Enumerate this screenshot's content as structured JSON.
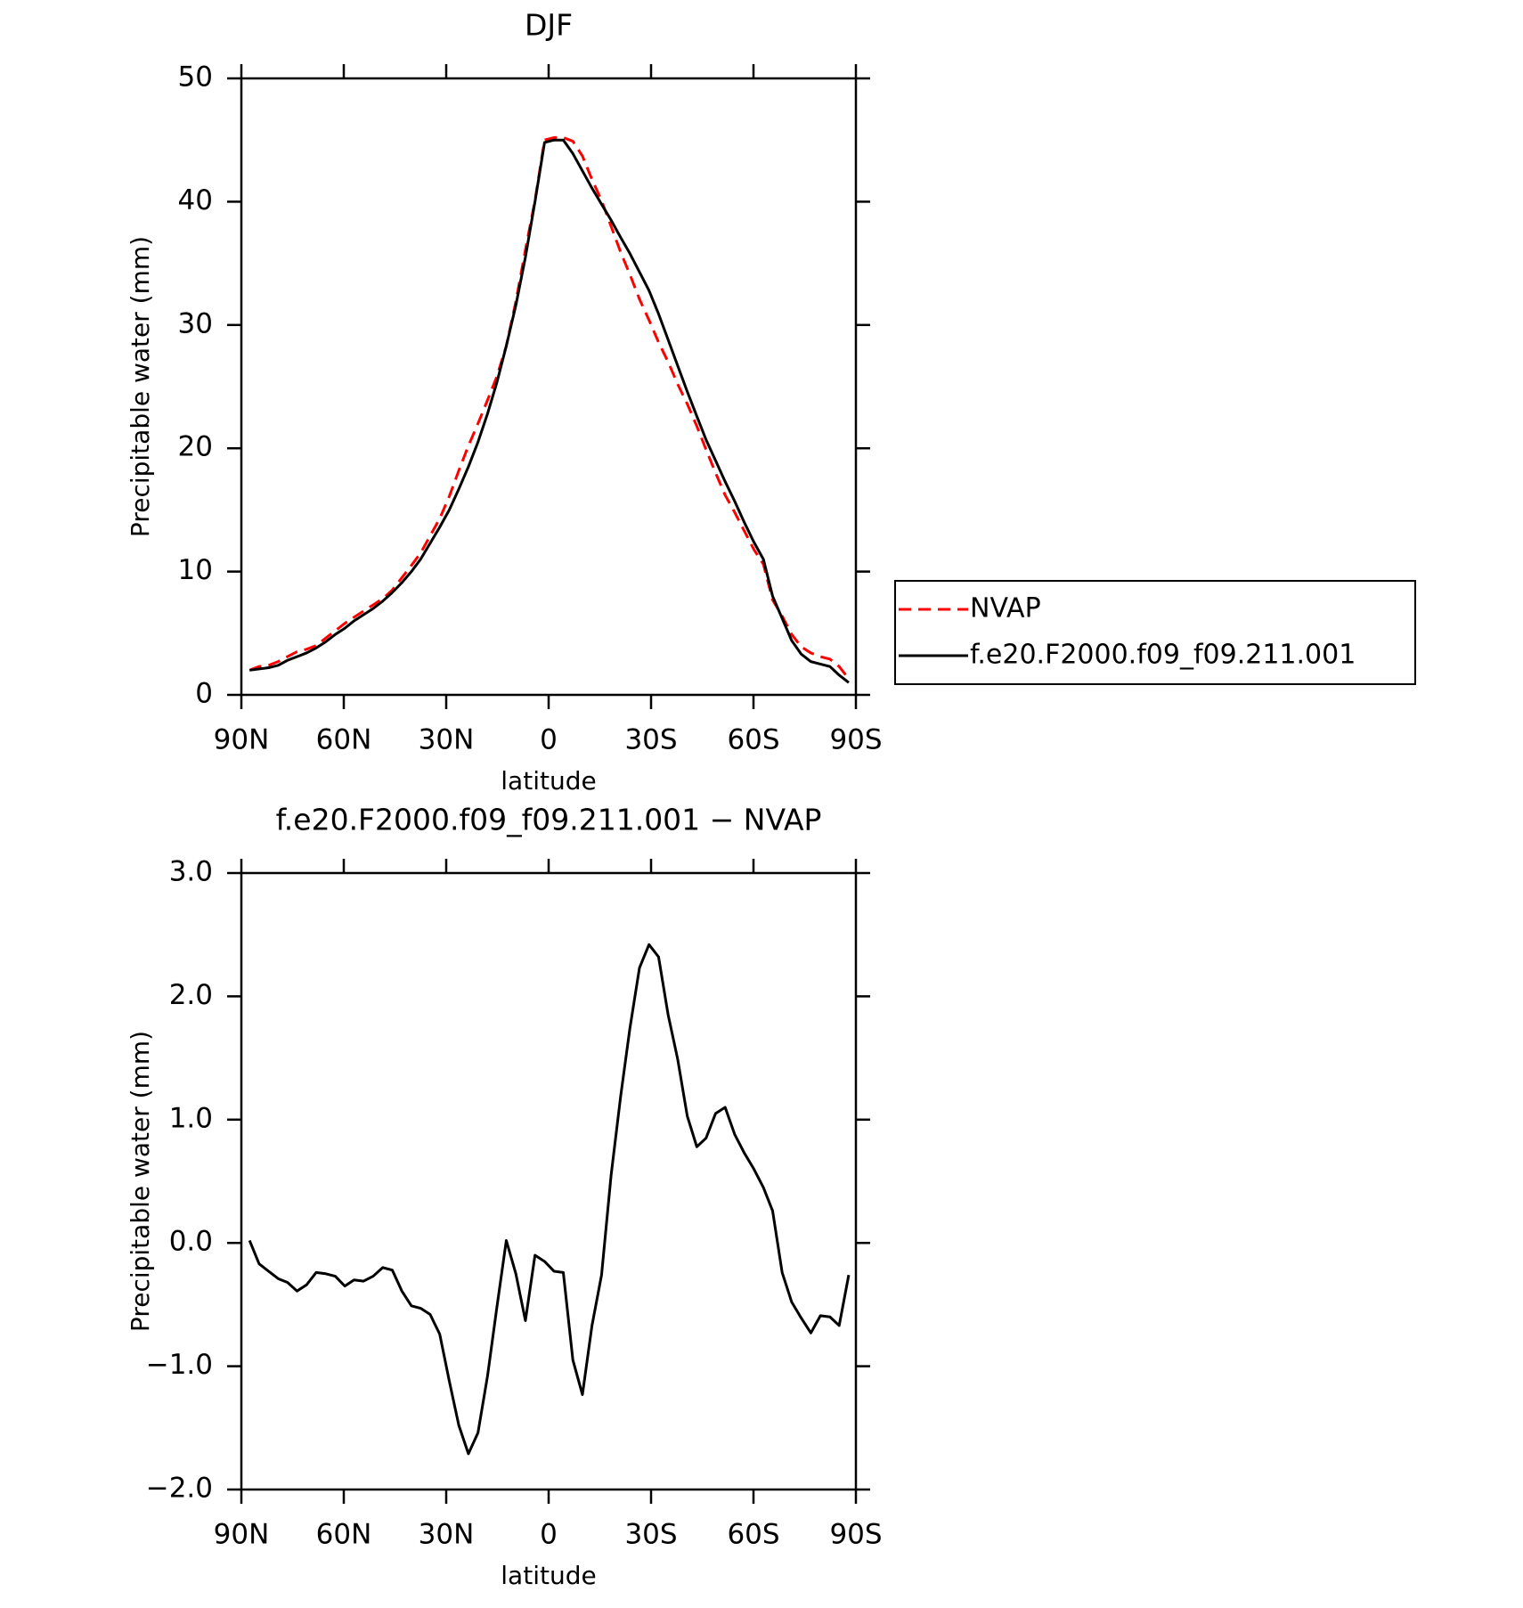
{
  "chart_data": [
    {
      "type": "line",
      "title": "DJF",
      "xlabel": "latitude",
      "ylabel": "Precipitable water (mm)",
      "xlim": [
        90,
        -90
      ],
      "ylim": [
        0,
        50
      ],
      "xticks": [
        {
          "value": 90,
          "label": "90N"
        },
        {
          "value": 60,
          "label": "60N"
        },
        {
          "value": 30,
          "label": "30N"
        },
        0,
        {
          "value": -30,
          "label": "30S"
        },
        {
          "value": -60,
          "label": "60S"
        },
        {
          "value": -90,
          "label": "90S"
        }
      ],
      "yticks": [
        0,
        10,
        20,
        30,
        40,
        50
      ],
      "legend": "right",
      "x": [
        87.6,
        84.8,
        82.0,
        79.2,
        76.5,
        73.7,
        70.9,
        68.1,
        65.3,
        62.5,
        59.7,
        57.0,
        54.2,
        51.4,
        48.6,
        45.8,
        43.0,
        40.2,
        37.5,
        34.7,
        31.9,
        29.1,
        26.3,
        23.5,
        20.7,
        17.9,
        15.2,
        12.4,
        9.6,
        6.8,
        4.0,
        1.2,
        -1.6,
        -4.3,
        -7.1,
        -9.9,
        -12.7,
        -15.5,
        -18.3,
        -21.1,
        -23.8,
        -26.6,
        -29.4,
        -32.2,
        -35.0,
        -37.8,
        -40.6,
        -43.4,
        -46.1,
        -48.9,
        -51.7,
        -54.5,
        -57.3,
        -60.1,
        -62.9,
        -65.6,
        -68.4,
        -71.2,
        -74.0,
        -76.8,
        -79.6,
        -82.4,
        -85.1,
        -87.9
      ],
      "series": [
        {
          "name": "NVAP",
          "color": "#ff0000",
          "linestyle": "dashed",
          "values": [
            2.0,
            2.3,
            2.4,
            2.7,
            3.1,
            3.5,
            3.7,
            4.0,
            4.6,
            5.2,
            5.8,
            6.3,
            6.8,
            7.3,
            7.8,
            8.5,
            9.5,
            10.5,
            11.5,
            12.9,
            14.3,
            16.1,
            18.2,
            20.2,
            22.0,
            23.9,
            25.8,
            28.3,
            31.9,
            36.1,
            40.1,
            45.0,
            45.2,
            45.2,
            44.9,
            43.7,
            41.8,
            40.1,
            38.0,
            35.9,
            34.1,
            32.1,
            30.4,
            28.6,
            27.0,
            25.2,
            23.6,
            21.8,
            19.9,
            18.0,
            16.2,
            14.8,
            13.3,
            11.8,
            10.6,
            7.7,
            6.4,
            4.9,
            3.9,
            3.4,
            3.1,
            2.9,
            2.3,
            1.3
          ]
        },
        {
          "name": "f.e20.F2000.f09_f09.211.001",
          "color": "#000000",
          "linestyle": "solid",
          "values": [
            2.0,
            2.1,
            2.2,
            2.4,
            2.8,
            3.1,
            3.4,
            3.8,
            4.3,
            4.9,
            5.4,
            6.0,
            6.5,
            7.0,
            7.6,
            8.3,
            9.1,
            10.0,
            11.0,
            12.3,
            13.6,
            15.0,
            16.7,
            18.5,
            20.5,
            22.8,
            25.3,
            28.3,
            31.6,
            35.5,
            40.0,
            44.8,
            45.0,
            45.0,
            43.9,
            42.5,
            41.1,
            39.8,
            38.5,
            37.1,
            35.8,
            34.3,
            32.8,
            30.9,
            28.8,
            26.7,
            24.6,
            22.6,
            20.7,
            19.0,
            17.3,
            15.7,
            14.0,
            12.4,
            11.0,
            8.0,
            6.2,
            4.4,
            3.3,
            2.7,
            2.5,
            2.3,
            1.6,
            1.0
          ]
        }
      ]
    },
    {
      "type": "line",
      "title": "f.e20.F2000.f09_f09.211.001 − NVAP",
      "xlabel": "latitude",
      "ylabel": "Precipitable water (mm)",
      "xlim": [
        90,
        -90
      ],
      "ylim": [
        -2,
        3
      ],
      "xticks": [
        {
          "value": 90,
          "label": "90N"
        },
        {
          "value": 60,
          "label": "60N"
        },
        {
          "value": 30,
          "label": "30N"
        },
        0,
        {
          "value": -30,
          "label": "30S"
        },
        {
          "value": -60,
          "label": "60S"
        },
        {
          "value": -90,
          "label": "90S"
        }
      ],
      "yticks": [
        {
          "value": -2,
          "label": "−2.0"
        },
        {
          "value": -1,
          "label": "−1.0"
        },
        {
          "value": 0,
          "label": "0.0"
        },
        {
          "value": 1,
          "label": "1.0"
        },
        {
          "value": 2,
          "label": "2.0"
        },
        {
          "value": 3,
          "label": "3.0"
        }
      ],
      "x": [
        87.6,
        84.8,
        82.0,
        79.2,
        76.5,
        73.7,
        70.9,
        68.1,
        65.3,
        62.5,
        59.7,
        57.0,
        54.2,
        51.4,
        48.6,
        45.8,
        43.0,
        40.2,
        37.5,
        34.7,
        31.9,
        29.1,
        26.3,
        23.5,
        20.7,
        17.9,
        15.2,
        12.4,
        9.6,
        6.8,
        4.0,
        1.2,
        -1.6,
        -4.3,
        -7.1,
        -9.9,
        -12.7,
        -15.5,
        -18.3,
        -21.1,
        -23.8,
        -26.6,
        -29.4,
        -32.2,
        -35.0,
        -37.8,
        -40.6,
        -43.4,
        -46.1,
        -48.9,
        -51.7,
        -54.5,
        -57.3,
        -60.1,
        -62.9,
        -65.6,
        -68.4,
        -71.2,
        -74.0,
        -76.8,
        -79.6,
        -82.4,
        -85.1,
        -87.9
      ],
      "series": [
        {
          "color": "#000000",
          "linestyle": "solid",
          "values": [
            0.02,
            -0.17,
            -0.23,
            -0.29,
            -0.32,
            -0.39,
            -0.34,
            -0.24,
            -0.25,
            -0.27,
            -0.35,
            -0.3,
            -0.31,
            -0.27,
            -0.2,
            -0.22,
            -0.39,
            -0.51,
            -0.53,
            -0.58,
            -0.74,
            -1.12,
            -1.48,
            -1.71,
            -1.54,
            -1.08,
            -0.53,
            0.02,
            -0.25,
            -0.63,
            -0.1,
            -0.15,
            -0.23,
            -0.24,
            -0.95,
            -1.23,
            -0.67,
            -0.26,
            0.55,
            1.19,
            1.74,
            2.23,
            2.42,
            2.32,
            1.85,
            1.49,
            1.03,
            0.78,
            0.85,
            1.05,
            1.1,
            0.88,
            0.73,
            0.6,
            0.45,
            0.26,
            -0.24,
            -0.48,
            -0.61,
            -0.73,
            -0.59,
            -0.6,
            -0.67,
            -0.26
          ]
        }
      ]
    }
  ]
}
